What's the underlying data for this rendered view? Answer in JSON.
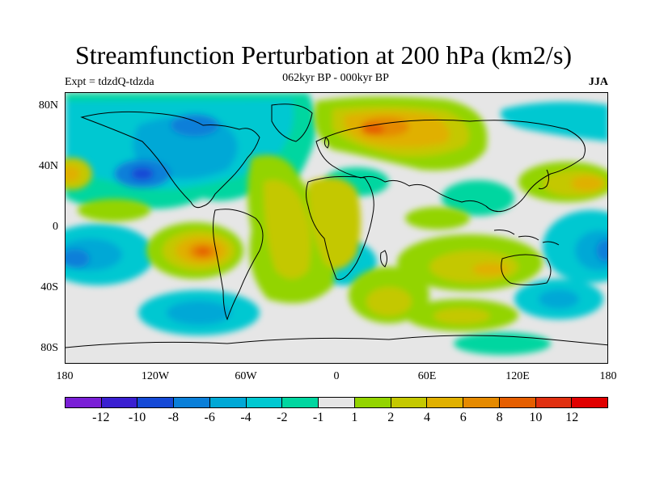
{
  "header": {
    "title": "Streamfunction Perturbation at 200 hPa (km2/s)",
    "subtitle": "062kyr BP - 000kyr BP",
    "left": "Expt = tdzdQ-tdzda",
    "right": "JJA"
  },
  "axes": {
    "y_ticks": [
      "80N",
      "40N",
      "0",
      "40S",
      "80S"
    ],
    "x_ticks": [
      "180",
      "120W",
      "60W",
      "0",
      "60E",
      "120E",
      "180"
    ]
  },
  "colorbar": {
    "labels": [
      "-12",
      "-10",
      "-8",
      "-6",
      "-4",
      "-2",
      "-1",
      "1",
      "2",
      "4",
      "6",
      "8",
      "10",
      "12"
    ],
    "colors": [
      "#7a1fd6",
      "#3a1fd1",
      "#1549d6",
      "#0a7fd9",
      "#00a8d6",
      "#00c8d1",
      "#00d6a0",
      "#e6e6e6",
      "#93d400",
      "#c4c800",
      "#e0b000",
      "#e58a00",
      "#e55e00",
      "#e03010",
      "#e00000"
    ]
  },
  "colors": {
    "neutral": "#e6e6e6",
    "coast": "#000000"
  }
}
